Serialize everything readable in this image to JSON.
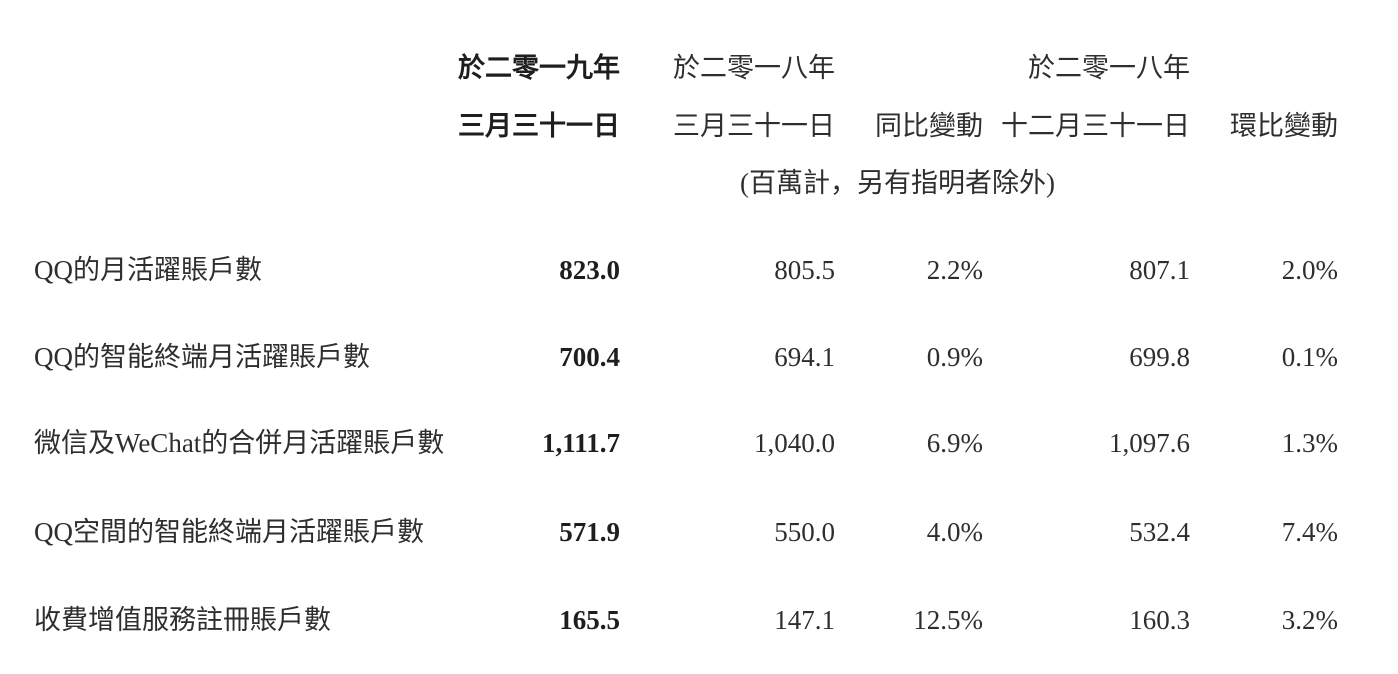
{
  "header": {
    "col1": {
      "line1": "於二零一九年",
      "line2": "三月三十一日"
    },
    "col2": {
      "line1": "於二零一八年",
      "line2": "三月三十一日"
    },
    "col3": {
      "line2": "同比變動"
    },
    "col4": {
      "line1": "於二零一八年",
      "line2": "十二月三十一日"
    },
    "col5": {
      "line2": "環比變動"
    },
    "unit_note": "(百萬計，另有指明者除外)"
  },
  "rows": [
    {
      "label": "QQ的月活躍賬戶數",
      "v2019": "823.0",
      "v2018mar": "805.5",
      "yoy": "2.2%",
      "v2018dec": "807.1",
      "qoq": "2.0%"
    },
    {
      "label": "QQ的智能終端月活躍賬戶數",
      "v2019": "700.4",
      "v2018mar": "694.1",
      "yoy": "0.9%",
      "v2018dec": "699.8",
      "qoq": "0.1%"
    },
    {
      "label": "微信及WeChat的合併月活躍賬戶數",
      "v2019": "1,111.7",
      "v2018mar": "1,040.0",
      "yoy": "6.9%",
      "v2018dec": "1,097.6",
      "qoq": "1.3%"
    },
    {
      "label": "QQ空間的智能終端月活躍賬戶數",
      "v2019": "571.9",
      "v2018mar": "550.0",
      "yoy": "4.0%",
      "v2018dec": "532.4",
      "qoq": "7.4%"
    },
    {
      "label": "收費增值服務註冊賬戶數",
      "v2019": "165.5",
      "v2018mar": "147.1",
      "yoy": "12.5%",
      "v2018dec": "160.3",
      "qoq": "3.2%"
    }
  ]
}
